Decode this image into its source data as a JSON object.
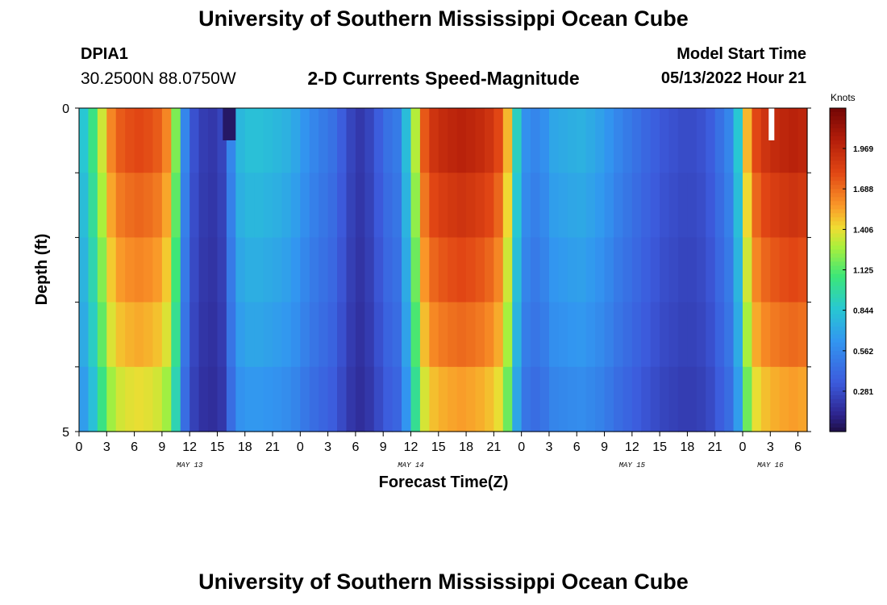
{
  "header": {
    "title": "University of Southern Mississippi Ocean Cube",
    "station_id": "DPIA1",
    "station_coords": "30.2500N  88.0750W",
    "plot_title": "2-D Currents Speed-Magnitude",
    "start_label": "Model Start Time",
    "start_value": "05/13/2022 Hour 21"
  },
  "footer": {
    "title": "University of Southern Mississippi Ocean Cube"
  },
  "chart_data": {
    "type": "heatmap",
    "title": "2-D Currents Speed-Magnitude",
    "xlabel": "Forecast Time(Z)",
    "ylabel": "Depth (ft)",
    "y_ticks": [
      "0",
      "5"
    ],
    "ylim": [
      0,
      5
    ],
    "x_tick_labels": [
      "0",
      "3",
      "6",
      "9",
      "12",
      "15",
      "18",
      "21",
      "0",
      "3",
      "6",
      "9",
      "12",
      "15",
      "18",
      "21",
      "0",
      "3",
      "6",
      "9",
      "12",
      "15",
      "18",
      "21",
      "0",
      "3",
      "6"
    ],
    "date_labels": [
      {
        "label": "MAY 13",
        "hour_index": 12
      },
      {
        "label": "MAY 14",
        "hour_index": 36
      },
      {
        "label": "MAY 15",
        "hour_index": 60
      },
      {
        "label": "MAY 16",
        "hour_index": 75
      }
    ],
    "colorbar": {
      "unit": "Knots",
      "ticks": [
        "1.969",
        "1.688",
        "1.406",
        "1.125",
        "0.844",
        "0.562",
        "0.281"
      ],
      "range": [
        0,
        2.25
      ]
    },
    "hours": 79,
    "depth_layers": 5,
    "speed_profile_surface": [
      0.85,
      1.05,
      1.35,
      1.62,
      1.74,
      1.78,
      1.8,
      1.78,
      1.74,
      1.62,
      1.2,
      0.55,
      0.3,
      0.22,
      0.2,
      0.25,
      0.55,
      0.78,
      0.82,
      0.82,
      0.8,
      0.78,
      0.75,
      0.7,
      0.62,
      0.55,
      0.5,
      0.45,
      0.35,
      0.25,
      0.2,
      0.25,
      0.35,
      0.45,
      0.5,
      0.8,
      1.3,
      1.75,
      1.9,
      1.95,
      1.98,
      2.0,
      1.98,
      1.95,
      1.9,
      1.8,
      1.5,
      0.9,
      0.6,
      0.55,
      0.6,
      0.7,
      0.72,
      0.74,
      0.75,
      0.72,
      0.68,
      0.62,
      0.55,
      0.5,
      0.45,
      0.4,
      0.36,
      0.32,
      0.3,
      0.28,
      0.28,
      0.3,
      0.35,
      0.45,
      0.55,
      0.85,
      1.5,
      1.8,
      1.9,
      1.95,
      1.98,
      2.0,
      1.98
    ],
    "depth_scaling": [
      1.0,
      0.95,
      0.9,
      0.85,
      0.78
    ],
    "annotations": [
      {
        "type": "dark-patch",
        "hours": [
          15,
          16
        ],
        "layer": 0,
        "value": 0.05
      },
      {
        "type": "white-marker",
        "hour": 75
      }
    ]
  }
}
